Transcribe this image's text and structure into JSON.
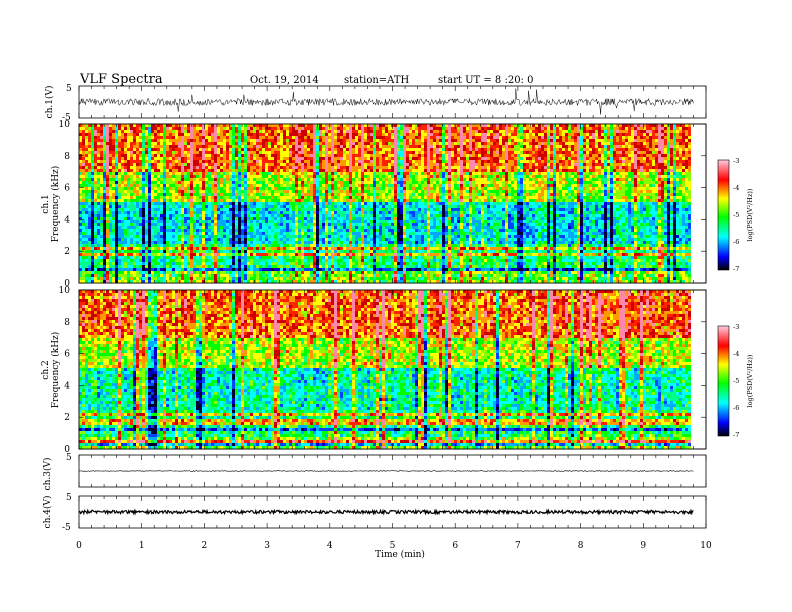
{
  "header": {
    "title": "VLF Spectra",
    "date": "Oct. 19, 2014",
    "station": "station=ATH",
    "start": "start UT = 8 :20: 0"
  },
  "colors": {
    "spectrogram_scale": [
      "#000000",
      "#0000ff",
      "#00ffff",
      "#00ff00",
      "#ffff00",
      "#ff0000",
      "#ff99cc"
    ]
  },
  "chart_data": [
    {
      "type": "line",
      "name": "ch1-waveform",
      "ylabel": "ch.1(V)",
      "yticks": [
        "5",
        "-5"
      ],
      "ylim": [
        -5,
        5
      ],
      "baseline": 0,
      "noise": "high amplitude with frequent spikes"
    },
    {
      "type": "heatmap",
      "name": "ch1-spectrogram",
      "ylabel": "ch.1",
      "ylabel2": "Frequency (kHz)",
      "yticks": [
        "0",
        "2",
        "4",
        "6",
        "8",
        "10"
      ],
      "ylim": [
        0,
        10
      ],
      "colorbar": {
        "label": "log(PSD(V²/Hz))",
        "ticks": [
          "-3",
          "-4",
          "-5",
          "-6",
          "-7"
        ],
        "range": [
          -7,
          -3
        ]
      }
    },
    {
      "type": "heatmap",
      "name": "ch2-spectrogram",
      "ylabel": "ch.2",
      "ylabel2": "Frequency (kHz)",
      "yticks": [
        "0",
        "2",
        "4",
        "6",
        "8",
        "10"
      ],
      "ylim": [
        0,
        10
      ],
      "colorbar": {
        "label": "log(PSD(V²/Hz))",
        "ticks": [
          "-3",
          "-4",
          "-5",
          "-6",
          "-7"
        ],
        "range": [
          -7,
          -3
        ]
      }
    },
    {
      "type": "line",
      "name": "ch3-waveform",
      "ylabel": "ch.3(V)",
      "yticks": [
        "5",
        "-5"
      ],
      "ylim": [
        -5,
        5
      ],
      "baseline": 0,
      "noise": "low"
    },
    {
      "type": "line",
      "name": "ch4-waveform",
      "ylabel": "ch.4(V)",
      "yticks": [
        "5",
        "-5"
      ],
      "ylim": [
        -5,
        5
      ],
      "baseline": 0,
      "noise": "thick band"
    }
  ],
  "xaxis": {
    "label": "Time (min)",
    "ticks": [
      "0",
      "1",
      "2",
      "3",
      "4",
      "5",
      "6",
      "7",
      "8",
      "9",
      "10"
    ],
    "xlim": [
      0,
      10
    ],
    "data_end": 9.8
  }
}
